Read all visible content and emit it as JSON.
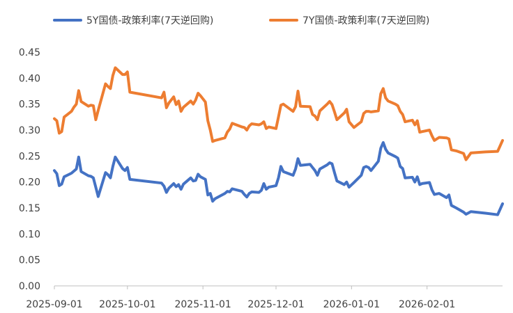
{
  "chart_data": {
    "type": "line",
    "title": "",
    "xlabel": "",
    "ylabel": "",
    "ylim": [
      0,
      0.45
    ],
    "y_ticks": [
      "0.00",
      "0.05",
      "0.10",
      "0.15",
      "0.20",
      "0.25",
      "0.30",
      "0.35",
      "0.40",
      "0.45"
    ],
    "x_ticks": [
      "2025-09-01",
      "2025-10-01",
      "2025-11-01",
      "2025-12-01",
      "2026-01-01",
      "2026-02-01"
    ],
    "grid": false,
    "legend_position": "top",
    "series": [
      {
        "name": "5Y国债-政策利率(7天逆回购)",
        "color": "#4472C4",
        "points": [
          [
            "2025-09-01",
            0.222
          ],
          [
            "2025-09-02",
            0.216
          ],
          [
            "2025-09-03",
            0.193
          ],
          [
            "2025-09-04",
            0.196
          ],
          [
            "2025-09-05",
            0.21
          ],
          [
            "2025-09-08",
            0.217
          ],
          [
            "2025-09-09",
            0.221
          ],
          [
            "2025-09-10",
            0.225
          ],
          [
            "2025-09-11",
            0.248
          ],
          [
            "2025-09-12",
            0.22
          ],
          [
            "2025-09-15",
            0.212
          ],
          [
            "2025-09-16",
            0.211
          ],
          [
            "2025-09-17",
            0.208
          ],
          [
            "2025-09-18",
            0.19
          ],
          [
            "2025-09-19",
            0.172
          ],
          [
            "2025-09-22",
            0.218
          ],
          [
            "2025-09-23",
            0.214
          ],
          [
            "2025-09-24",
            0.208
          ],
          [
            "2025-09-25",
            0.23
          ],
          [
            "2025-09-26",
            0.248
          ],
          [
            "2025-09-29",
            0.226
          ],
          [
            "2025-09-30",
            0.222
          ],
          [
            "2025-10-01",
            0.228
          ],
          [
            "2025-10-02",
            0.205
          ],
          [
            "2025-10-15",
            0.198
          ],
          [
            "2025-10-16",
            0.192
          ],
          [
            "2025-10-17",
            0.18
          ],
          [
            "2025-10-18",
            0.188
          ],
          [
            "2025-10-20",
            0.197
          ],
          [
            "2025-10-21",
            0.191
          ],
          [
            "2025-10-22",
            0.195
          ],
          [
            "2025-10-23",
            0.186
          ],
          [
            "2025-10-24",
            0.196
          ],
          [
            "2025-10-27",
            0.208
          ],
          [
            "2025-10-28",
            0.202
          ],
          [
            "2025-10-29",
            0.203
          ],
          [
            "2025-10-30",
            0.215
          ],
          [
            "2025-10-31",
            0.21
          ],
          [
            "2025-11-02",
            0.205
          ],
          [
            "2025-11-03",
            0.175
          ],
          [
            "2025-11-04",
            0.178
          ],
          [
            "2025-11-05",
            0.163
          ],
          [
            "2025-11-06",
            0.168
          ],
          [
            "2025-11-10",
            0.178
          ],
          [
            "2025-11-11",
            0.182
          ],
          [
            "2025-11-12",
            0.181
          ],
          [
            "2025-11-13",
            0.187
          ],
          [
            "2025-11-17",
            0.182
          ],
          [
            "2025-11-18",
            0.176
          ],
          [
            "2025-11-19",
            0.171
          ],
          [
            "2025-11-20",
            0.178
          ],
          [
            "2025-11-21",
            0.181
          ],
          [
            "2025-11-24",
            0.18
          ],
          [
            "2025-11-25",
            0.184
          ],
          [
            "2025-11-26",
            0.197
          ],
          [
            "2025-11-27",
            0.186
          ],
          [
            "2025-11-28",
            0.19
          ],
          [
            "2025-12-01",
            0.193
          ],
          [
            "2025-12-02",
            0.208
          ],
          [
            "2025-12-03",
            0.23
          ],
          [
            "2025-12-04",
            0.22
          ],
          [
            "2025-12-08",
            0.213
          ],
          [
            "2025-12-09",
            0.225
          ],
          [
            "2025-12-10",
            0.245
          ],
          [
            "2025-12-11",
            0.232
          ],
          [
            "2025-12-15",
            0.234
          ],
          [
            "2025-12-16",
            0.228
          ],
          [
            "2025-12-17",
            0.222
          ],
          [
            "2025-12-18",
            0.213
          ],
          [
            "2025-12-19",
            0.225
          ],
          [
            "2025-12-22",
            0.233
          ],
          [
            "2025-12-23",
            0.237
          ],
          [
            "2025-12-24",
            0.235
          ],
          [
            "2025-12-25",
            0.218
          ],
          [
            "2025-12-26",
            0.202
          ],
          [
            "2025-12-29",
            0.195
          ],
          [
            "2025-12-30",
            0.2
          ],
          [
            "2025-12-31",
            0.19
          ],
          [
            "2026-01-02",
            0.199
          ],
          [
            "2026-01-05",
            0.213
          ],
          [
            "2026-01-06",
            0.228
          ],
          [
            "2026-01-07",
            0.23
          ],
          [
            "2026-01-08",
            0.228
          ],
          [
            "2026-01-09",
            0.222
          ],
          [
            "2026-01-12",
            0.24
          ],
          [
            "2026-01-13",
            0.265
          ],
          [
            "2026-01-14",
            0.276
          ],
          [
            "2026-01-15",
            0.263
          ],
          [
            "2026-01-16",
            0.256
          ],
          [
            "2026-01-19",
            0.249
          ],
          [
            "2026-01-20",
            0.246
          ],
          [
            "2026-01-21",
            0.23
          ],
          [
            "2026-01-22",
            0.226
          ],
          [
            "2026-01-23",
            0.208
          ],
          [
            "2026-01-26",
            0.209
          ],
          [
            "2026-01-27",
            0.2
          ],
          [
            "2026-01-28",
            0.21
          ],
          [
            "2026-01-29",
            0.195
          ],
          [
            "2026-01-30",
            0.197
          ],
          [
            "2026-02-02",
            0.199
          ],
          [
            "2026-02-03",
            0.185
          ],
          [
            "2026-02-04",
            0.176
          ],
          [
            "2026-02-06",
            0.178
          ],
          [
            "2026-02-09",
            0.17
          ],
          [
            "2026-02-10",
            0.175
          ],
          [
            "2026-02-11",
            0.155
          ],
          [
            "2026-02-13",
            0.15
          ],
          [
            "2026-02-16",
            0.142
          ],
          [
            "2026-02-17",
            0.138
          ],
          [
            "2026-02-19",
            0.143
          ],
          [
            "2026-02-25",
            0.14
          ],
          [
            "2026-03-02",
            0.137
          ],
          [
            "2026-03-04",
            0.158
          ]
        ]
      },
      {
        "name": "7Y国债-政策利率(7天逆回购)",
        "color": "#ED7D31",
        "points": [
          [
            "2025-09-01",
            0.322
          ],
          [
            "2025-09-02",
            0.318
          ],
          [
            "2025-09-03",
            0.294
          ],
          [
            "2025-09-04",
            0.297
          ],
          [
            "2025-09-05",
            0.325
          ],
          [
            "2025-09-08",
            0.336
          ],
          [
            "2025-09-09",
            0.344
          ],
          [
            "2025-09-10",
            0.35
          ],
          [
            "2025-09-11",
            0.376
          ],
          [
            "2025-09-12",
            0.355
          ],
          [
            "2025-09-15",
            0.346
          ],
          [
            "2025-09-16",
            0.348
          ],
          [
            "2025-09-17",
            0.347
          ],
          [
            "2025-09-18",
            0.32
          ],
          [
            "2025-09-19",
            0.338
          ],
          [
            "2025-09-22",
            0.389
          ],
          [
            "2025-09-23",
            0.384
          ],
          [
            "2025-09-24",
            0.38
          ],
          [
            "2025-09-25",
            0.405
          ],
          [
            "2025-09-26",
            0.42
          ],
          [
            "2025-09-29",
            0.407
          ],
          [
            "2025-09-30",
            0.407
          ],
          [
            "2025-10-01",
            0.412
          ],
          [
            "2025-10-02",
            0.373
          ],
          [
            "2025-10-15",
            0.362
          ],
          [
            "2025-10-16",
            0.373
          ],
          [
            "2025-10-17",
            0.343
          ],
          [
            "2025-10-18",
            0.352
          ],
          [
            "2025-10-20",
            0.364
          ],
          [
            "2025-10-21",
            0.349
          ],
          [
            "2025-10-22",
            0.356
          ],
          [
            "2025-10-23",
            0.336
          ],
          [
            "2025-10-24",
            0.344
          ],
          [
            "2025-10-27",
            0.356
          ],
          [
            "2025-10-28",
            0.35
          ],
          [
            "2025-10-29",
            0.358
          ],
          [
            "2025-10-30",
            0.371
          ],
          [
            "2025-10-31",
            0.366
          ],
          [
            "2025-11-02",
            0.354
          ],
          [
            "2025-11-03",
            0.318
          ],
          [
            "2025-11-04",
            0.3
          ],
          [
            "2025-11-05",
            0.278
          ],
          [
            "2025-11-06",
            0.28
          ],
          [
            "2025-11-10",
            0.285
          ],
          [
            "2025-11-11",
            0.296
          ],
          [
            "2025-11-12",
            0.302
          ],
          [
            "2025-11-13",
            0.313
          ],
          [
            "2025-11-17",
            0.306
          ],
          [
            "2025-11-18",
            0.305
          ],
          [
            "2025-11-19",
            0.3
          ],
          [
            "2025-11-20",
            0.308
          ],
          [
            "2025-11-21",
            0.312
          ],
          [
            "2025-11-24",
            0.31
          ],
          [
            "2025-11-25",
            0.312
          ],
          [
            "2025-11-26",
            0.316
          ],
          [
            "2025-11-27",
            0.303
          ],
          [
            "2025-11-28",
            0.306
          ],
          [
            "2025-12-01",
            0.303
          ],
          [
            "2025-12-02",
            0.325
          ],
          [
            "2025-12-03",
            0.348
          ],
          [
            "2025-12-04",
            0.35
          ],
          [
            "2025-12-08",
            0.336
          ],
          [
            "2025-12-09",
            0.345
          ],
          [
            "2025-12-10",
            0.375
          ],
          [
            "2025-12-11",
            0.346
          ],
          [
            "2025-12-15",
            0.345
          ],
          [
            "2025-12-16",
            0.33
          ],
          [
            "2025-12-17",
            0.327
          ],
          [
            "2025-12-18",
            0.32
          ],
          [
            "2025-12-19",
            0.337
          ],
          [
            "2025-12-22",
            0.35
          ],
          [
            "2025-12-23",
            0.355
          ],
          [
            "2025-12-24",
            0.349
          ],
          [
            "2025-12-25",
            0.335
          ],
          [
            "2025-12-26",
            0.32
          ],
          [
            "2025-12-29",
            0.333
          ],
          [
            "2025-12-30",
            0.34
          ],
          [
            "2025-12-31",
            0.316
          ],
          [
            "2026-01-02",
            0.305
          ],
          [
            "2026-01-05",
            0.316
          ],
          [
            "2026-01-06",
            0.332
          ],
          [
            "2026-01-07",
            0.336
          ],
          [
            "2026-01-08",
            0.336
          ],
          [
            "2026-01-09",
            0.335
          ],
          [
            "2026-01-12",
            0.337
          ],
          [
            "2026-01-13",
            0.37
          ],
          [
            "2026-01-14",
            0.38
          ],
          [
            "2026-01-15",
            0.362
          ],
          [
            "2026-01-16",
            0.356
          ],
          [
            "2026-01-19",
            0.35
          ],
          [
            "2026-01-20",
            0.347
          ],
          [
            "2026-01-21",
            0.336
          ],
          [
            "2026-01-22",
            0.33
          ],
          [
            "2026-01-23",
            0.316
          ],
          [
            "2026-01-26",
            0.319
          ],
          [
            "2026-01-27",
            0.31
          ],
          [
            "2026-01-28",
            0.318
          ],
          [
            "2026-01-29",
            0.296
          ],
          [
            "2026-01-30",
            0.297
          ],
          [
            "2026-02-02",
            0.3
          ],
          [
            "2026-02-03",
            0.289
          ],
          [
            "2026-02-04",
            0.28
          ],
          [
            "2026-02-06",
            0.286
          ],
          [
            "2026-02-09",
            0.285
          ],
          [
            "2026-02-10",
            0.283
          ],
          [
            "2026-02-11",
            0.262
          ],
          [
            "2026-02-13",
            0.26
          ],
          [
            "2026-02-16",
            0.255
          ],
          [
            "2026-02-17",
            0.243
          ],
          [
            "2026-02-19",
            0.256
          ],
          [
            "2026-02-25",
            0.258
          ],
          [
            "2026-03-02",
            0.259
          ],
          [
            "2026-03-04",
            0.28
          ]
        ]
      }
    ]
  }
}
